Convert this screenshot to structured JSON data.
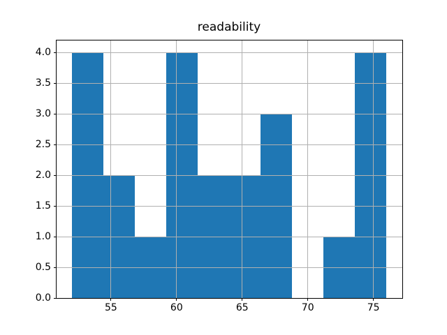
{
  "figure": {
    "background": "#ffffff"
  },
  "chart_data": {
    "type": "bar",
    "subtype": "histogram",
    "title": "readability",
    "xlabel": "",
    "ylabel": "",
    "bin_edges": [
      52.0,
      54.4,
      56.8,
      59.2,
      61.6,
      64.0,
      66.4,
      68.8,
      71.2,
      73.6,
      76.0
    ],
    "counts": [
      4,
      2,
      1,
      4,
      2,
      2,
      3,
      0,
      1,
      4
    ],
    "xlim": [
      50.8,
      77.2
    ],
    "ylim": [
      0,
      4.2
    ],
    "x_ticks": [
      55,
      60,
      65,
      70,
      75
    ],
    "x_tick_labels": [
      "55",
      "60",
      "65",
      "70",
      "75"
    ],
    "y_ticks": [
      0.0,
      0.5,
      1.0,
      1.5,
      2.0,
      2.5,
      3.0,
      3.5,
      4.0
    ],
    "y_tick_labels": [
      "0.0",
      "0.5",
      "1.0",
      "1.5",
      "2.0",
      "2.5",
      "3.0",
      "3.5",
      "4.0"
    ],
    "grid": true,
    "grid_over_bars": true,
    "legend": "none",
    "colors": {
      "bar": "#1f77b4",
      "grid": "#b0b0b0",
      "spine": "#000000",
      "tick": "#000000",
      "text": "#000000",
      "background": "#ffffff"
    }
  }
}
